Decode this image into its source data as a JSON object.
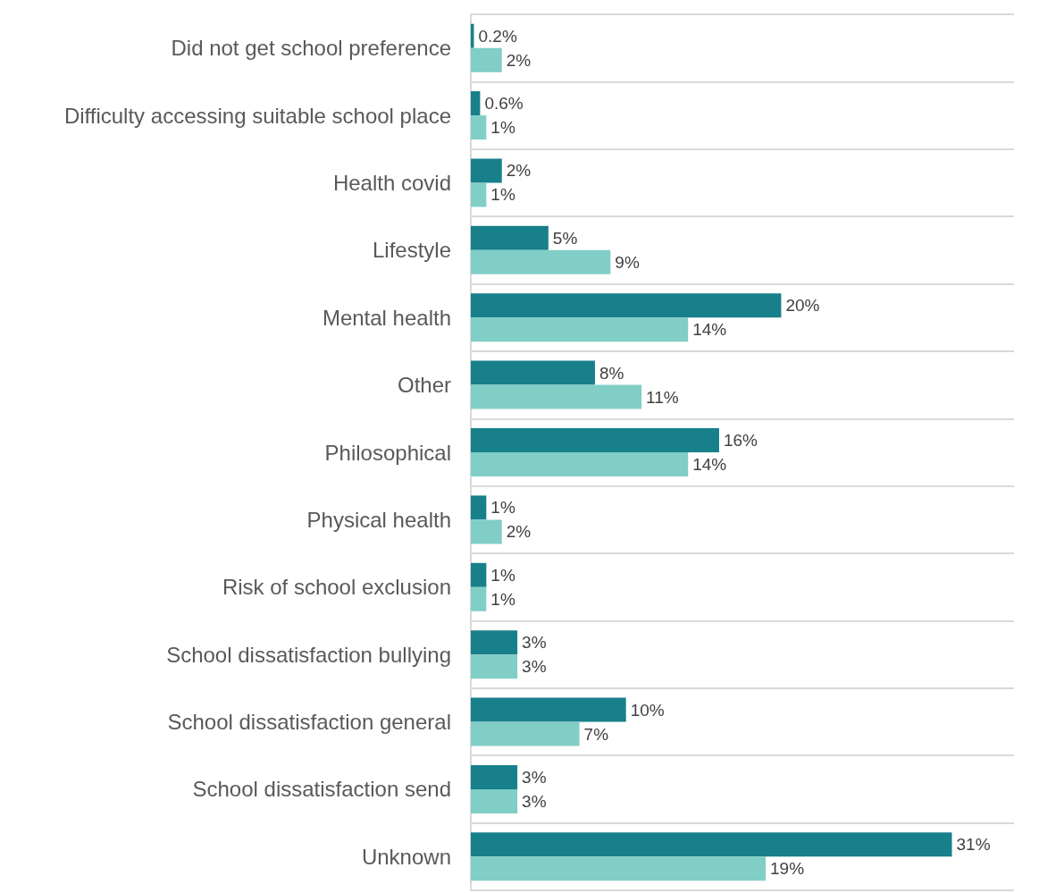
{
  "chart_data": {
    "type": "bar",
    "orientation": "horizontal",
    "categories": [
      "Did not get school preference",
      "Difficulty accessing suitable school place",
      "Health covid",
      "Lifestyle",
      "Mental health",
      "Other",
      "Philosophical",
      "Physical health",
      "Risk of school exclusion",
      "School dissatisfaction bullying",
      "School dissatisfaction general",
      "School dissatisfaction send",
      "Unknown"
    ],
    "series": [
      {
        "color": "#17808a",
        "values": [
          0.2,
          0.6,
          2,
          5,
          20,
          8,
          16,
          1,
          1,
          3,
          10,
          3,
          31
        ],
        "value_labels": [
          "0.2%",
          "0.6%",
          "2%",
          "5%",
          "20%",
          "8%",
          "16%",
          "1%",
          "1%",
          "3%",
          "10%",
          "3%",
          "31%"
        ]
      },
      {
        "color": "#80cec6",
        "values": [
          2,
          1,
          1,
          9,
          14,
          11,
          14,
          2,
          1,
          3,
          7,
          3,
          19
        ],
        "value_labels": [
          "2%",
          "1%",
          "1%",
          "9%",
          "14%",
          "11%",
          "14%",
          "2%",
          "1%",
          "3%",
          "7%",
          "3%",
          "19%"
        ]
      }
    ],
    "grid": "y",
    "tick_labels": "y"
  }
}
